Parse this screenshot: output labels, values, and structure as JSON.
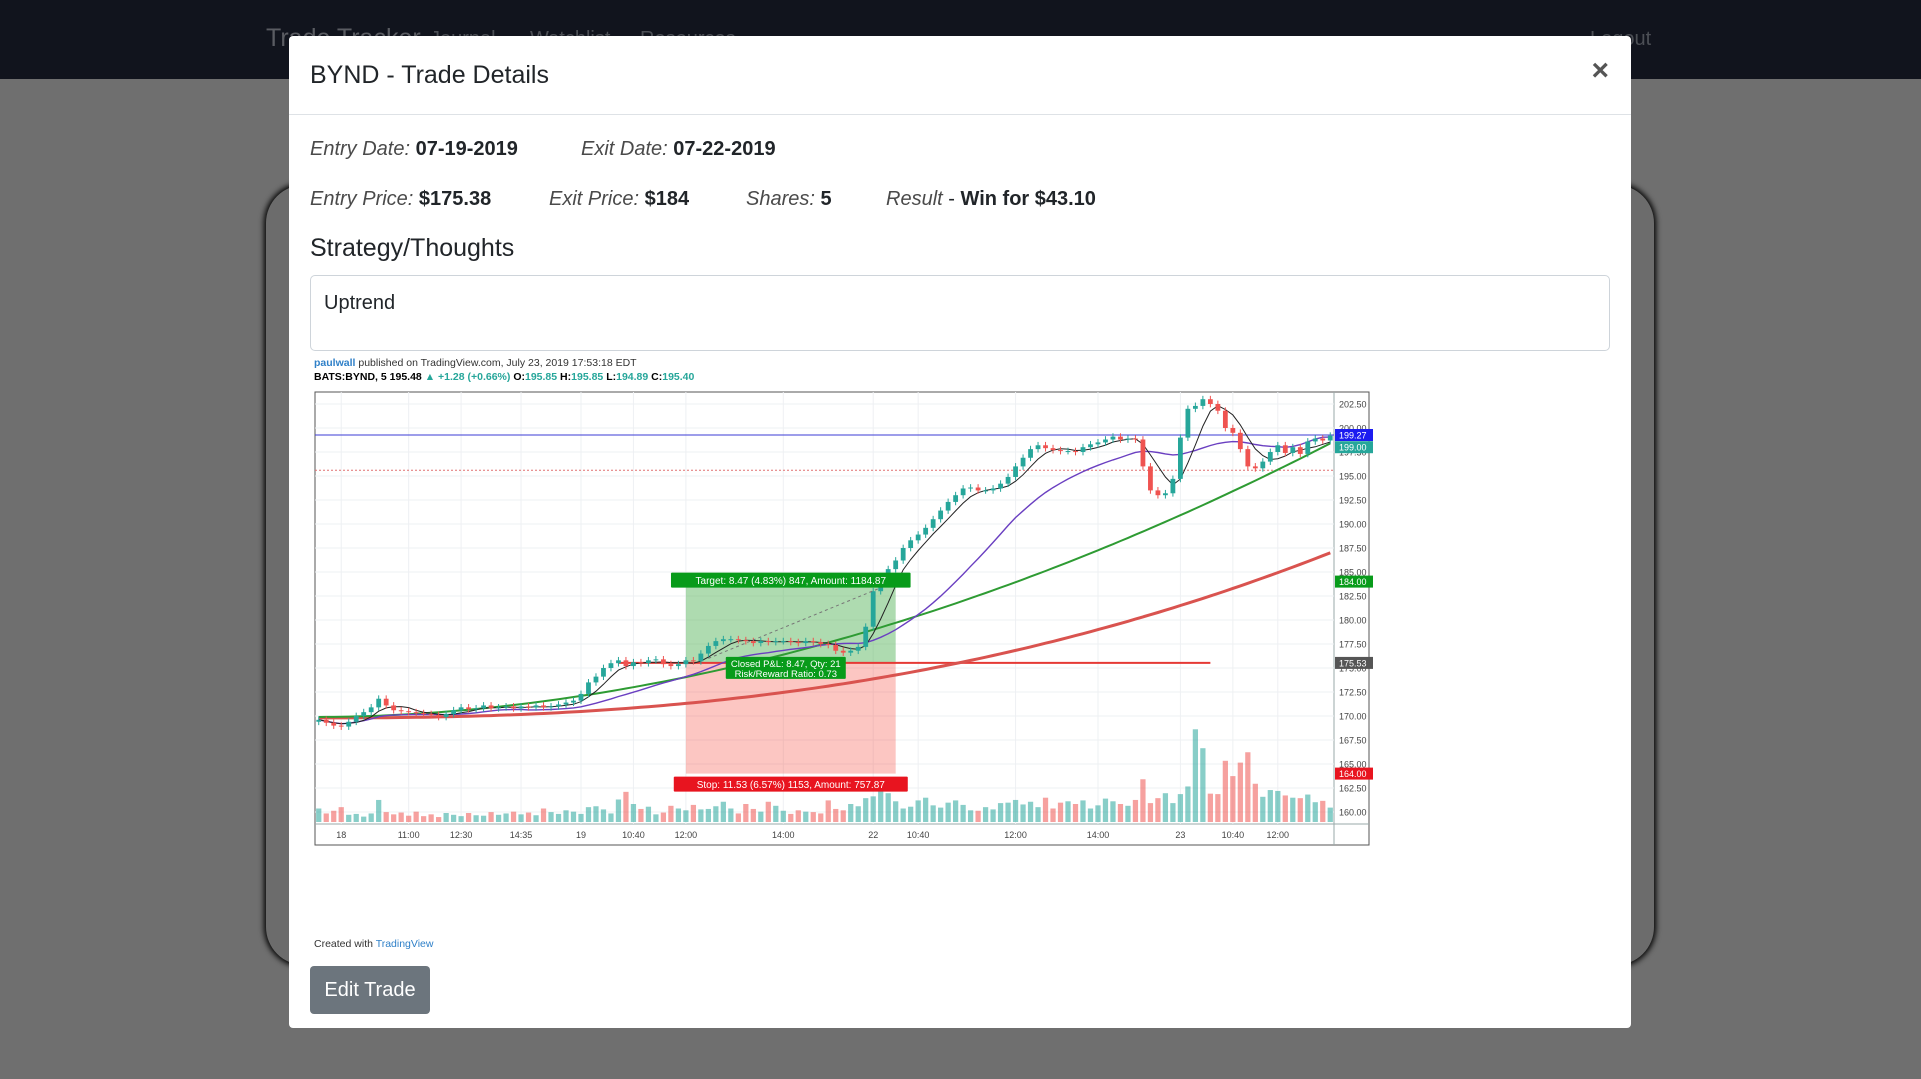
{
  "navbar": {
    "brand": "Trade Tracker",
    "links": [
      "Journal",
      "Watchlist",
      "Resources"
    ],
    "logout": "Logout"
  },
  "modal": {
    "title": "BYND - Trade Details",
    "close_label": "×",
    "entry_date_label": "Entry Date:",
    "entry_date": "07-19-2019",
    "exit_date_label": "Exit Date:",
    "exit_date": "07-22-2019",
    "entry_price_label": "Entry Price:",
    "entry_price": "$175.38",
    "exit_price_label": "Exit Price:",
    "exit_price": "$184",
    "shares_label": "Shares:",
    "shares": "5",
    "result_label": "Result",
    "result_sep": "-",
    "result": "Win for $43.10",
    "strategy_heading": "Strategy/Thoughts",
    "strategy_text": "Uptrend",
    "edit_button": "Edit Trade"
  },
  "chart_meta": {
    "user": "paulwall",
    "published": "published on TradingView.com, July 23, 2019 17:53:18 EDT",
    "symbol": "BATS:BYND, 5",
    "last": "195.48",
    "change": "▲ +1.28 (+0.66%)",
    "o_label": "O:",
    "o": "195.85",
    "h_label": "H:",
    "h": "195.85",
    "l_label": "L:",
    "l": "194.89",
    "c_label": "C:",
    "c": "195.40",
    "credit": "Created with",
    "credit_brand": "TradingView"
  },
  "chart_data": {
    "type": "candlestick",
    "ylim": [
      158.75,
      203.75
    ],
    "y_ticks": [
      {
        "v": 202.5,
        "t": "202.50"
      },
      {
        "v": 200,
        "t": "200.00"
      },
      {
        "v": 197.5,
        "t": "197.50"
      },
      {
        "v": 195,
        "t": "195.00"
      },
      {
        "v": 192.5,
        "t": "192.50"
      },
      {
        "v": 190,
        "t": "190.00"
      },
      {
        "v": 187.5,
        "t": "187.50"
      },
      {
        "v": 185,
        "t": "185.00"
      },
      {
        "v": 182.5,
        "t": "182.50"
      },
      {
        "v": 180,
        "t": "180.00"
      },
      {
        "v": 177.5,
        "t": "177.50"
      },
      {
        "v": 175,
        "t": "175.00"
      },
      {
        "v": 172.5,
        "t": "172.50"
      },
      {
        "v": 170,
        "t": "170.00"
      },
      {
        "v": 167.5,
        "t": "167.50"
      },
      {
        "v": 165,
        "t": "165.00"
      },
      {
        "v": 162.5,
        "t": "162.50"
      },
      {
        "v": 160,
        "t": "160.00"
      }
    ],
    "x_ticks": [
      {
        "i": 3,
        "t": "18"
      },
      {
        "i": 12,
        "t": "11:00"
      },
      {
        "i": 19,
        "t": "12:30"
      },
      {
        "i": 27,
        "t": "14:35"
      },
      {
        "i": 35,
        "t": "19"
      },
      {
        "i": 42,
        "t": "10:40"
      },
      {
        "i": 49,
        "t": "12:00"
      },
      {
        "i": 62,
        "t": "14:00"
      },
      {
        "i": 74,
        "t": "22"
      },
      {
        "i": 80,
        "t": "10:40"
      },
      {
        "i": 93,
        "t": "12:00"
      },
      {
        "i": 104,
        "t": "14:00"
      },
      {
        "i": 115,
        "t": "23"
      },
      {
        "i": 122,
        "t": "10:40"
      },
      {
        "i": 128,
        "t": "12:00"
      }
    ],
    "closes": [
      169.6,
      169.3,
      169.0,
      168.9,
      169.4,
      170.0,
      170.4,
      170.9,
      171.8,
      171.1,
      170.6,
      170.5,
      170.4,
      170.3,
      170.2,
      170.1,
      169.9,
      170.2,
      170.6,
      170.9,
      170.7,
      170.8,
      171.1,
      170.8,
      170.9,
      171.0,
      170.8,
      171.0,
      170.9,
      171.1,
      170.9,
      171.0,
      171.2,
      171.4,
      171.6,
      172.3,
      173.5,
      174.1,
      175.0,
      175.5,
      175.8,
      175.2,
      175.6,
      175.5,
      175.8,
      175.9,
      175.4,
      175.2,
      175.4,
      175.8,
      175.7,
      176.5,
      177.3,
      177.8,
      178.0,
      178.0,
      177.9,
      177.8,
      177.6,
      177.8,
      177.7,
      177.8,
      177.8,
      177.7,
      177.6,
      177.8,
      177.7,
      177.5,
      177.4,
      176.8,
      176.6,
      176.8,
      177.2,
      179.3,
      183.0,
      184.2,
      185.3,
      186.2,
      187.5,
      188.3,
      188.9,
      189.6,
      190.5,
      191.4,
      192.3,
      193.0,
      193.7,
      193.8,
      193.5,
      193.5,
      193.7,
      194.2,
      194.9,
      196.0,
      196.9,
      197.8,
      198.2,
      197.9,
      197.7,
      197.6,
      197.6,
      197.5,
      198.0,
      198.3,
      198.5,
      198.8,
      199.1,
      198.8,
      198.9,
      198.8,
      196.0,
      193.5,
      193.0,
      193.2,
      194.7,
      199.0,
      202.0,
      202.3,
      203.0,
      202.5,
      201.8,
      200.0,
      199.5,
      197.8,
      196.0,
      195.8,
      196.5,
      197.5,
      198.2,
      197.4,
      198.0,
      197.3,
      198.6,
      198.9,
      198.7,
      199.2
    ],
    "volumes": [
      0.3,
      0.19,
      0.25,
      0.33,
      0.16,
      0.18,
      0.12,
      0.19,
      0.49,
      0.22,
      0.17,
      0.21,
      0.14,
      0.23,
      0.13,
      0.17,
      0.11,
      0.2,
      0.16,
      0.13,
      0.2,
      0.15,
      0.14,
      0.22,
      0.16,
      0.19,
      0.23,
      0.17,
      0.21,
      0.15,
      0.3,
      0.22,
      0.18,
      0.26,
      0.23,
      0.18,
      0.33,
      0.35,
      0.28,
      0.19,
      0.5,
      0.67,
      0.4,
      0.29,
      0.34,
      0.17,
      0.21,
      0.36,
      0.3,
      0.26,
      0.38,
      0.28,
      0.29,
      0.35,
      0.45,
      0.3,
      0.19,
      0.4,
      0.29,
      0.23,
      0.45,
      0.36,
      0.25,
      0.18,
      0.26,
      0.23,
      0.22,
      0.19,
      0.48,
      0.29,
      0.26,
      0.4,
      0.35,
      0.53,
      0.57,
      0.79,
      0.64,
      0.46,
      0.3,
      0.34,
      0.48,
      0.54,
      0.37,
      0.32,
      0.43,
      0.48,
      0.38,
      0.26,
      0.25,
      0.33,
      0.28,
      0.42,
      0.43,
      0.49,
      0.39,
      0.45,
      0.33,
      0.54,
      0.3,
      0.43,
      0.46,
      0.4,
      0.48,
      0.3,
      0.37,
      0.52,
      0.46,
      0.4,
      0.36,
      0.49,
      0.95,
      0.42,
      0.53,
      0.64,
      0.42,
      0.62,
      0.79,
      2.06,
      1.64,
      0.63,
      0.62,
      1.36,
      1.02,
      1.32,
      1.55,
      0.85,
      0.56,
      0.71,
      0.69,
      0.59,
      0.54,
      0.53,
      0.61,
      0.44,
      0.47,
      0.32,
      0.35,
      0.29
    ],
    "annotations": {
      "target_label": "Target: 8.47 (4.83%) 847, Amount: 1184.87",
      "stop_label": "Stop: 11.53 (6.57%) 1153, Amount: 757.87",
      "closed_pl": "Closed P&L: 8.47, Qty: 21",
      "risk_reward": "Risk/Reward Ratio: 0.73"
    },
    "position": {
      "entry": 175.53,
      "target": 184.0,
      "stop": 164.0,
      "start_i": 49,
      "end_i": 77
    },
    "horizontal_lines": [
      {
        "v": 199.27,
        "color": "#3b3bd6"
      },
      {
        "v": 195.6,
        "color": "#e07070"
      },
      {
        "v": 175.53,
        "color": "#e53935"
      }
    ],
    "price_tags": [
      {
        "v": 199.27,
        "t": "199.27",
        "color": "#1c1cf0"
      },
      {
        "v": 198.0,
        "t": "199.00",
        "color": "#26a69a"
      },
      {
        "v": 184.0,
        "t": "184.00",
        "color": "#089b1a"
      },
      {
        "v": 175.53,
        "t": "175.53",
        "color": "#555555"
      },
      {
        "v": 164.0,
        "t": "164.00",
        "color": "#e8141f"
      }
    ]
  }
}
